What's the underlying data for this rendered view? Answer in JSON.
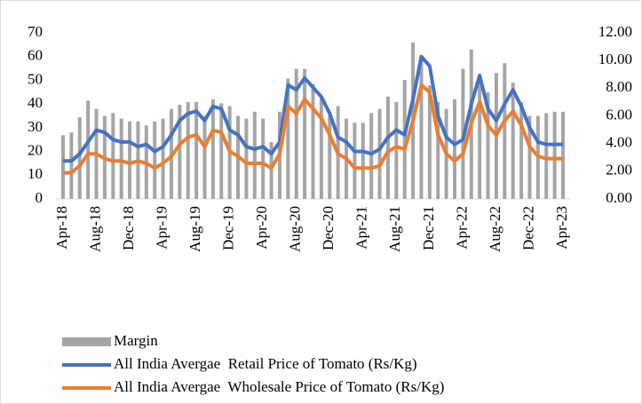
{
  "chart_data": {
    "type": "combo",
    "categories": [
      "Apr-18",
      null,
      null,
      null,
      "Aug-18",
      null,
      null,
      null,
      "Dec-18",
      null,
      null,
      null,
      "Apr-19",
      null,
      null,
      null,
      "Aug-19",
      null,
      null,
      null,
      "Dec-19",
      null,
      null,
      null,
      "Apr-20",
      null,
      null,
      null,
      "Aug-20",
      null,
      null,
      null,
      "Dec-20",
      null,
      null,
      null,
      "Apr-21",
      null,
      null,
      null,
      "Aug-21",
      null,
      null,
      null,
      "Dec-21",
      null,
      null,
      null,
      "Apr-22",
      null,
      null,
      null,
      "Aug-22",
      null,
      null,
      null,
      "Dec-22",
      null,
      null,
      null,
      "Apr-23"
    ],
    "series": [
      {
        "name": "Margin",
        "kind": "bar",
        "axis": "y2",
        "color": "#a5a5a5",
        "values": [
          4.6,
          4.8,
          5.9,
          7.1,
          6.5,
          6.0,
          6.2,
          5.8,
          5.6,
          5.6,
          5.3,
          5.6,
          5.8,
          6.5,
          6.8,
          7.0,
          7.0,
          6.0,
          7.2,
          6.9,
          6.7,
          6.0,
          5.8,
          6.3,
          5.8,
          4.1,
          6.3,
          8.7,
          9.4,
          9.4,
          8.3,
          7.3,
          6.0,
          6.7,
          5.8,
          5.5,
          5.5,
          6.2,
          6.5,
          7.4,
          7.0,
          8.6,
          11.3,
          10.3,
          8.2,
          7.0,
          6.5,
          7.2,
          9.4,
          10.8,
          8.6,
          7.7,
          9.1,
          9.8,
          8.4,
          7.0,
          6.0,
          6.0,
          6.2,
          6.3,
          6.3
        ]
      },
      {
        "name": "All India Avergae  Retail Price of Tomato (Rs/Kg)",
        "kind": "line",
        "color": "#4472c4",
        "values": [
          16,
          16,
          19,
          24,
          29,
          28,
          25,
          24,
          24,
          22,
          23,
          20,
          22,
          27,
          33,
          36,
          37,
          33,
          39,
          38,
          29,
          27,
          22,
          21,
          22,
          19,
          24,
          48,
          46,
          51,
          47,
          43,
          36,
          26,
          24,
          20,
          20,
          19,
          21,
          26,
          29,
          27,
          42,
          60,
          56,
          35,
          26,
          23,
          25,
          40,
          52,
          38,
          33,
          40,
          46,
          39,
          30,
          24,
          23,
          23,
          23
        ]
      },
      {
        "name": "All India Avergae  Wholesale Price of Tomato (Rs/Kg)",
        "kind": "line",
        "color": "#ed7d31",
        "values": [
          11,
          11,
          14,
          19,
          19,
          17,
          16,
          16,
          15,
          16,
          15,
          13,
          15,
          18,
          23,
          26,
          27,
          22,
          29,
          28,
          20,
          18,
          15,
          15,
          15,
          13,
          19,
          39,
          36,
          42,
          38,
          34,
          27,
          19,
          17,
          13,
          13,
          13,
          14,
          20,
          22,
          21,
          33,
          48,
          45,
          27,
          19,
          16,
          19,
          32,
          41,
          31,
          27,
          33,
          37,
          31,
          22,
          18,
          17,
          17,
          17
        ]
      }
    ],
    "ylim": [
      0,
      70
    ],
    "yticks": [
      0,
      10,
      20,
      30,
      40,
      50,
      60,
      70
    ],
    "y2lim": [
      0,
      12
    ],
    "y2ticks": [
      {
        "value": 0,
        "label": "0.00"
      },
      {
        "value": 2,
        "label": "2.00"
      },
      {
        "value": 4,
        "label": "4.00"
      },
      {
        "value": 6,
        "label": "6.00"
      },
      {
        "value": 8,
        "label": "8.00"
      },
      {
        "value": 10,
        "label": "10.00"
      },
      {
        "value": 12,
        "label": "12.00"
      }
    ],
    "legend": "bottom-left"
  }
}
